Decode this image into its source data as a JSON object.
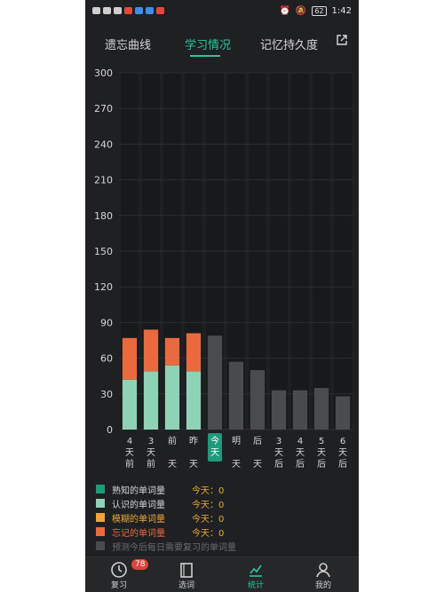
{
  "status_bar": {
    "time": "1:42",
    "battery": "62"
  },
  "tabs": [
    {
      "label": "遗忘曲线",
      "active": false
    },
    {
      "label": "学习情况",
      "active": true
    },
    {
      "label": "记忆持久度",
      "active": false
    }
  ],
  "colors": {
    "accent": "#2fc29b",
    "familiar": "#1f9a7a",
    "known": "#8fd2b5",
    "fuzzy": "#f0a43a",
    "forgotten": "#e86a3e",
    "forecast": "#4a4b4e"
  },
  "chart_data": {
    "type": "bar",
    "stacked": true,
    "ylim": [
      0,
      300
    ],
    "yticks": [
      0,
      30,
      60,
      90,
      120,
      150,
      180,
      210,
      240,
      270,
      300
    ],
    "categories": [
      "4天前",
      "3天前",
      "前天",
      "昨天",
      "今天",
      "明天",
      "后天",
      "3天后",
      "4天后",
      "5天后",
      "6天后"
    ],
    "category_lines": [
      [
        "4",
        "天",
        "前"
      ],
      [
        "3",
        "天",
        "前"
      ],
      [
        "前",
        "",
        "天"
      ],
      [
        "昨",
        "",
        "天"
      ],
      [
        "今",
        "天",
        ""
      ],
      [
        "明",
        "",
        "天"
      ],
      [
        "后",
        "",
        "天"
      ],
      [
        "3",
        "天",
        "后"
      ],
      [
        "4",
        "天",
        "后"
      ],
      [
        "5",
        "天",
        "后"
      ],
      [
        "6",
        "天",
        "后"
      ]
    ],
    "highlight_category": "今天",
    "series": [
      {
        "name": "认识的单词量",
        "values": [
          42,
          49,
          54,
          49,
          0,
          0,
          0,
          0,
          0,
          0,
          0
        ]
      },
      {
        "name": "忘记的单词量",
        "values": [
          35,
          35,
          23,
          32,
          0,
          0,
          0,
          0,
          0,
          0,
          0
        ]
      },
      {
        "name": "预测今后每日需要复习的单词量",
        "values": [
          0,
          0,
          0,
          0,
          79,
          57,
          50,
          33,
          33,
          35,
          28
        ]
      }
    ]
  },
  "legend": [
    {
      "label": "熟知的单词量",
      "today": "今天：0",
      "color_key": "familiar",
      "label_color": "#d6d6d6"
    },
    {
      "label": "认识的单词量",
      "today": "今天：0",
      "color_key": "known",
      "label_color": "#d6d6d6"
    },
    {
      "label": "模糊的单词量",
      "today": "今天：0",
      "color_key": "fuzzy",
      "label_color": "#e8a935"
    },
    {
      "label": "忘记的单词量",
      "today": "今天：0",
      "color_key": "forgotten",
      "label_color": "#e86a3e"
    },
    {
      "label": "预测今后每日需要复习的单词量",
      "today": "",
      "color_key": "forecast",
      "label_color": "#6a6b6e"
    }
  ],
  "bottom_nav": [
    {
      "label": "复习",
      "icon": "clock-icon",
      "badge": "78",
      "active": false
    },
    {
      "label": "选词",
      "icon": "book-icon",
      "badge": "",
      "active": false
    },
    {
      "label": "统计",
      "icon": "chart-icon",
      "badge": "",
      "active": true
    },
    {
      "label": "我的",
      "icon": "person-icon",
      "badge": "",
      "active": false
    }
  ]
}
